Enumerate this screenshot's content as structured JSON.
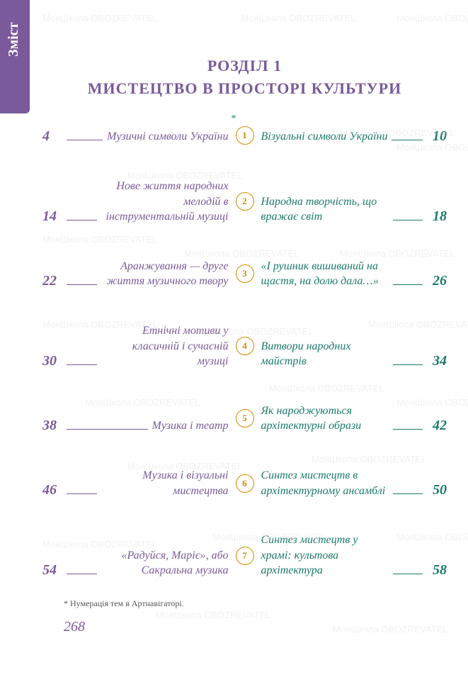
{
  "tab_label": "Зміст",
  "section_number": "РОЗДІЛ 1",
  "section_title": "МИСТЕЦТВО В ПРОСТОРІ КУЛЬТУРИ",
  "colors": {
    "purple": "#7a5a9a",
    "teal": "#1a7a6a",
    "orange": "#d68a00"
  },
  "rows": [
    {
      "num": "1",
      "star": "*",
      "left_title": "Музичні символи України",
      "left_page": "4",
      "right_title": "Візуальні символи України",
      "right_page": "10"
    },
    {
      "num": "2",
      "left_title": "Нове життя народних мелодій в інструментальній музиці",
      "left_page": "14",
      "right_title": "Народна творчість, що вражає світ",
      "right_page": "18"
    },
    {
      "num": "3",
      "left_title": "Аранжування — друге життя музичного твору",
      "left_page": "22",
      "right_title": "«І рушник вишиваний на щастя, на долю дала…»",
      "right_page": "26"
    },
    {
      "num": "4",
      "left_title": "Етнічні мотиви у класичній і сучасній музиці",
      "left_page": "30",
      "right_title": "Витвори народних майстрів",
      "right_page": "34"
    },
    {
      "num": "5",
      "left_title": "Музика і театр",
      "left_page": "38",
      "right_title": "Як народжуються архітектурні образи",
      "right_page": "42"
    },
    {
      "num": "6",
      "left_title": "Музика і візуальні мистецтва",
      "left_page": "46",
      "right_title": "Синтез мистецтв в архітектурному ансамблі",
      "right_page": "50"
    },
    {
      "num": "7",
      "left_title": "«Радуйся, Маріє», або Сакральна музика",
      "left_page": "54",
      "right_title": "Синтез мистецтв у храмі: культова архітектура",
      "right_page": "58"
    }
  ],
  "footnote": "* Нумерація тем в Артнавігаторі.",
  "page_number": "268",
  "watermark_text": "МояШкола OBOZREVATEL"
}
